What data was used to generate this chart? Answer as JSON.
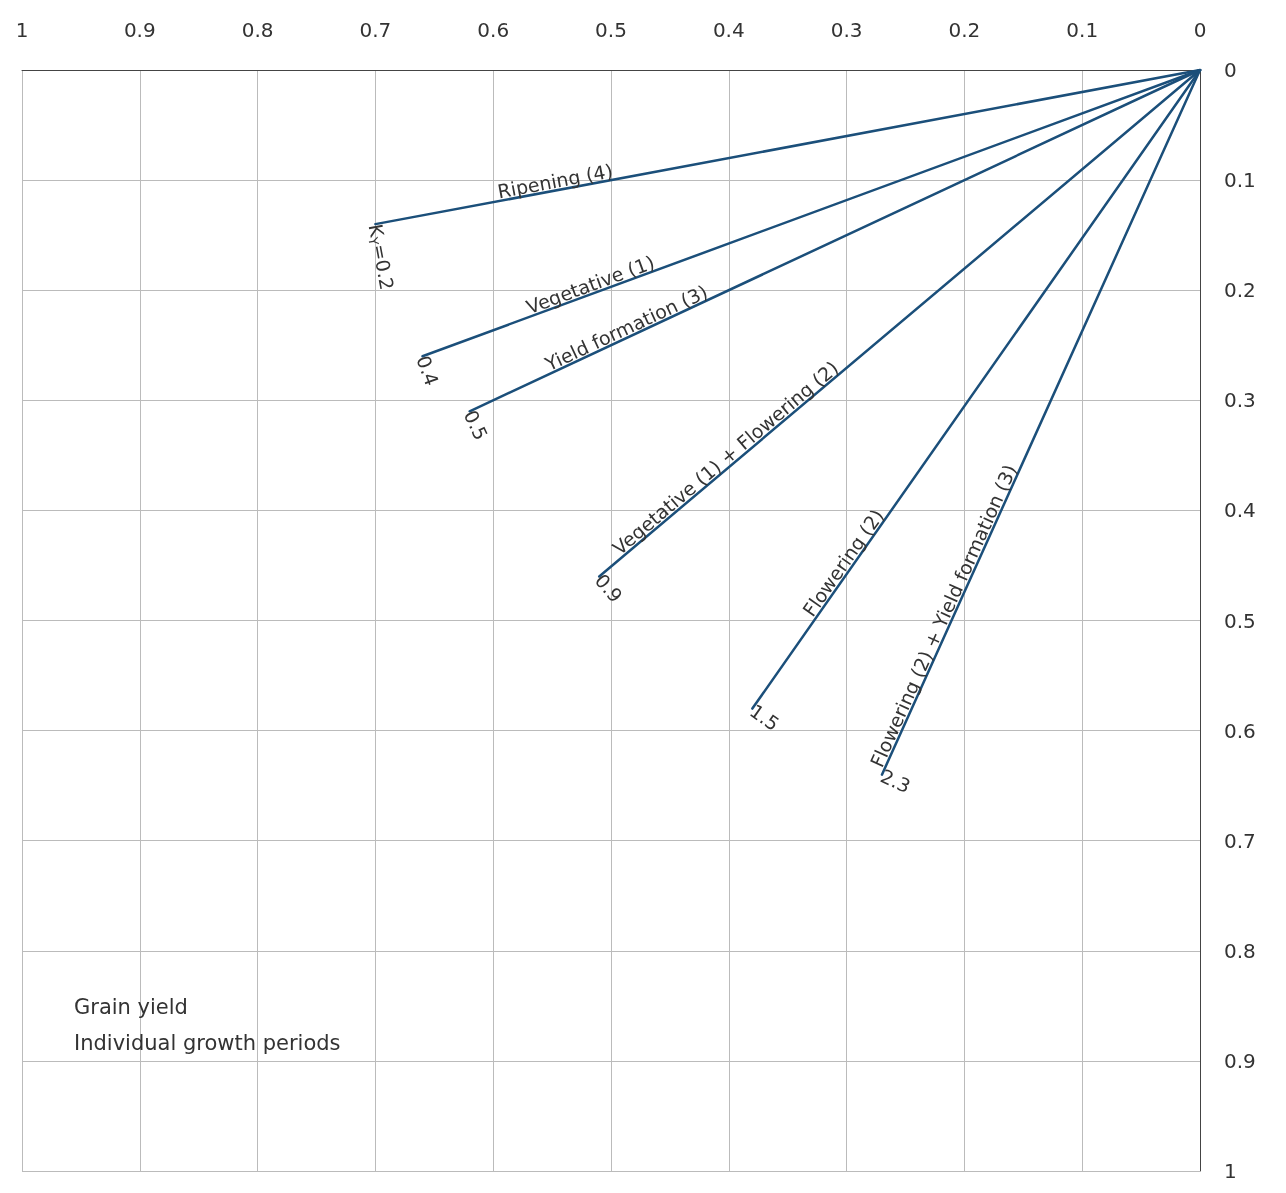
{
  "chart_data": {
    "type": "line",
    "xlim": [
      1,
      0
    ],
    "ylim": [
      1,
      0
    ],
    "xticks": [
      1,
      0.9,
      0.8,
      0.7,
      0.6,
      0.5,
      0.4,
      0.3,
      0.2,
      0.1,
      0
    ],
    "yticks": [
      0,
      0.1,
      0.2,
      0.3,
      0.4,
      0.5,
      0.6,
      0.7,
      0.8,
      0.9,
      1
    ],
    "grid": true,
    "marker": "none",
    "line_style": "solid",
    "series": [
      {
        "name": "Ripening (4)",
        "color": "#1b4f7a",
        "x": [
          0,
          0.7
        ],
        "values": [
          0,
          0.14
        ]
      },
      {
        "name": "Vegetative (1)",
        "color": "#1b4f7a",
        "x": [
          0,
          0.66
        ],
        "values": [
          0,
          0.26
        ]
      },
      {
        "name": "Yield formation (3)",
        "color": "#1b4f7a",
        "x": [
          0,
          0.62
        ],
        "values": [
          0,
          0.31
        ]
      },
      {
        "name": "Vegetative (1) + Flowering (2)",
        "color": "#1b4f7a",
        "x": [
          0,
          0.51
        ],
        "values": [
          0,
          0.46
        ]
      },
      {
        "name": "Flowering (2)",
        "color": "#1b4f7a",
        "x": [
          0,
          0.38
        ],
        "values": [
          0,
          0.58
        ]
      },
      {
        "name": "Flowering (2) + Yield formation (3)",
        "color": "#1b4f7a",
        "x": [
          0,
          0.27
        ],
        "values": [
          0,
          0.64
        ]
      }
    ],
    "annotations": [
      {
        "text": "K$_{Y}$=0.2",
        "x": 0.7,
        "y": 0.14
      },
      {
        "text": "0.4",
        "x": 0.66,
        "y": 0.26
      },
      {
        "text": "0.5",
        "x": 0.62,
        "y": 0.31
      },
      {
        "text": "0.9",
        "x": 0.51,
        "y": 0.46
      },
      {
        "text": "1.5",
        "x": 0.38,
        "y": 0.58
      },
      {
        "text": "2.3",
        "x": 0.27,
        "y": 0.64
      },
      "Grain yield",
      "Individual growth periods"
    ]
  }
}
